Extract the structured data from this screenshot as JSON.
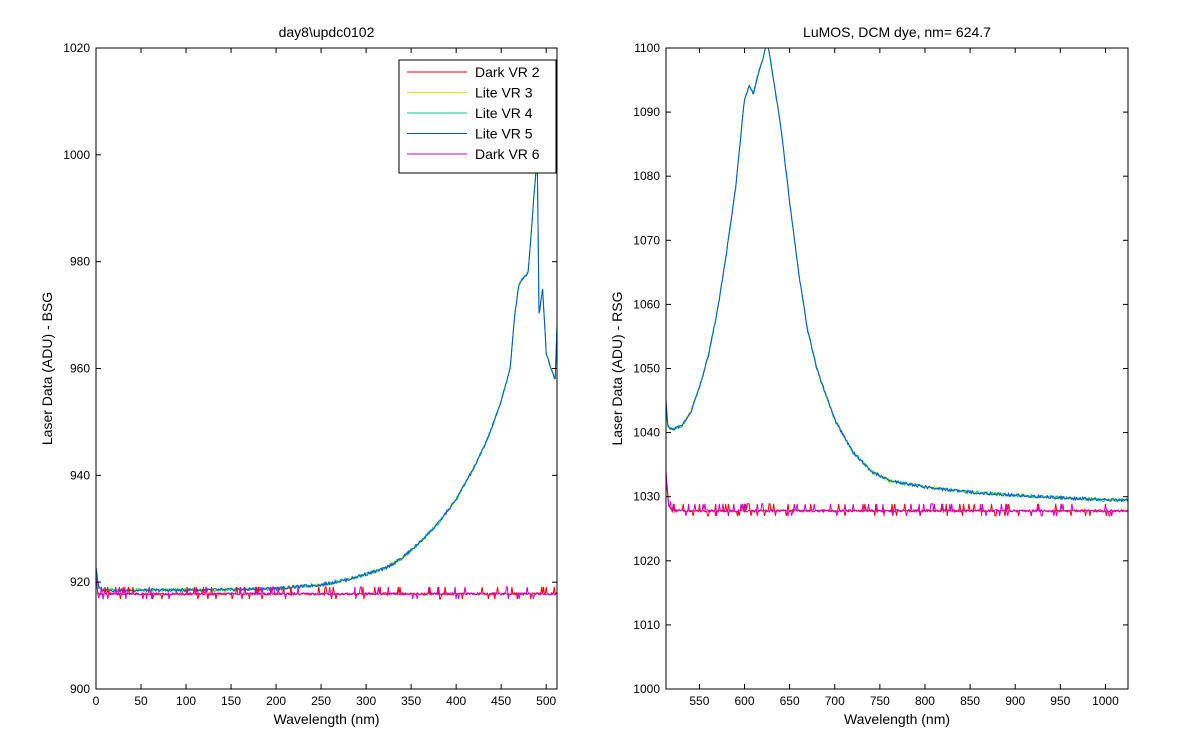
{
  "window": {
    "background": "#ffffff"
  },
  "chart_data": [
    {
      "type": "line",
      "title": "day8\\updc0102",
      "xlabel": "Wavelength (nm)",
      "ylabel": "Laser Data (ADU) - BSG",
      "xlim": [
        0,
        512
      ],
      "ylim": [
        900,
        1020
      ],
      "xticks": [
        0,
        50,
        100,
        150,
        200,
        250,
        300,
        350,
        400,
        450,
        500
      ],
      "yticks": [
        900,
        920,
        940,
        960,
        980,
        1000,
        1020
      ],
      "grid": false,
      "legend": {
        "placement": "top-right"
      },
      "series": [
        {
          "name": "Dark VR 2",
          "color": "#ff0000",
          "kind": "dark",
          "x": [
            0,
            2,
            4,
            512
          ],
          "y": [
            921,
            918,
            917.8,
            917.8
          ]
        },
        {
          "name": "Lite VR 3",
          "color": "#e6e600",
          "kind": "lite",
          "x": [
            0,
            3,
            6,
            50,
            100,
            150,
            200,
            250,
            280,
            300,
            320,
            340,
            360,
            380,
            400,
            420,
            430,
            440,
            450,
            460,
            465,
            470,
            480,
            490,
            492,
            496,
            500,
            505,
            510,
            512
          ],
          "y": [
            922,
            919,
            918.5,
            918.5,
            918.5,
            918.6,
            918.8,
            919.5,
            920.5,
            921.5,
            922.5,
            924.5,
            927.5,
            931,
            935.5,
            941.5,
            945,
            949,
            954,
            960,
            970,
            976,
            978,
            1000,
            970,
            975,
            963,
            960,
            958,
            968
          ]
        },
        {
          "name": "Lite VR 4",
          "color": "#00cc88",
          "kind": "lite",
          "x": [
            0,
            3,
            6,
            50,
            100,
            150,
            200,
            250,
            280,
            300,
            320,
            340,
            360,
            380,
            400,
            420,
            430,
            440,
            450,
            460,
            465,
            470,
            480,
            490,
            492,
            496,
            500,
            505,
            510,
            512
          ],
          "y": [
            922,
            919,
            918.5,
            918.5,
            918.5,
            918.6,
            918.8,
            919.5,
            920.5,
            921.5,
            922.5,
            924.5,
            927.5,
            931,
            935.5,
            941.5,
            945,
            949,
            954,
            960,
            970,
            976,
            978,
            1000,
            970,
            975,
            963,
            960,
            958,
            968
          ]
        },
        {
          "name": "Lite VR 5",
          "color": "#0055dd",
          "kind": "lite",
          "x": [
            0,
            3,
            6,
            50,
            100,
            150,
            200,
            250,
            280,
            300,
            320,
            340,
            360,
            380,
            400,
            420,
            430,
            440,
            450,
            460,
            465,
            470,
            480,
            490,
            492,
            496,
            500,
            505,
            510,
            512
          ],
          "y": [
            923,
            919,
            918.5,
            918.5,
            918.5,
            918.6,
            918.8,
            919.5,
            920.5,
            921.5,
            922.5,
            924.5,
            927.5,
            931,
            935.5,
            941.5,
            945,
            949,
            954,
            960,
            970,
            976,
            978,
            1000,
            970,
            975,
            963,
            960,
            958,
            968
          ]
        },
        {
          "name": "Dark VR 6",
          "color": "#cc00cc",
          "kind": "dark",
          "x": [
            0,
            2,
            4,
            512
          ],
          "y": [
            921,
            918,
            917.8,
            917.8
          ]
        }
      ]
    },
    {
      "type": "line",
      "title": "LuMOS, DCM dye, nm= 624.7",
      "xlabel": "Wavelength (nm)",
      "ylabel": "Laser Data (ADU) - RSG",
      "xlim": [
        513,
        1025
      ],
      "ylim": [
        1000,
        1100
      ],
      "xticks": [
        550,
        600,
        650,
        700,
        750,
        800,
        850,
        900,
        950,
        1000
      ],
      "yticks": [
        1000,
        1010,
        1020,
        1030,
        1040,
        1050,
        1060,
        1070,
        1080,
        1090,
        1100
      ],
      "grid": false,
      "legend": null,
      "series": [
        {
          "name": "Dark VR 2",
          "color": "#ff0000",
          "kind": "dark",
          "x": [
            513,
            516,
            520,
            1025
          ],
          "y": [
            1034,
            1028.5,
            1027.8,
            1027.8
          ]
        },
        {
          "name": "Lite VR 3",
          "color": "#e6e600",
          "kind": "lite",
          "x": [
            513,
            515,
            520,
            530,
            540,
            550,
            560,
            570,
            580,
            590,
            595,
            600,
            605,
            610,
            615,
            620,
            625,
            630,
            640,
            650,
            660,
            670,
            680,
            690,
            700,
            720,
            740,
            760,
            800,
            850,
            900,
            1000,
            1025
          ],
          "y": [
            1044,
            1041,
            1040.5,
            1041,
            1043,
            1047,
            1052,
            1059,
            1068,
            1078,
            1085,
            1092,
            1094,
            1093,
            1096,
            1098,
            1101,
            1097,
            1088,
            1076,
            1065,
            1056,
            1050,
            1046,
            1042,
            1037,
            1034,
            1032.5,
            1031.5,
            1030.7,
            1030.2,
            1029.5,
            1029.5
          ]
        },
        {
          "name": "Lite VR 4",
          "color": "#00cc88",
          "kind": "lite",
          "x": [
            513,
            515,
            520,
            530,
            540,
            550,
            560,
            570,
            580,
            590,
            595,
            600,
            605,
            610,
            615,
            620,
            625,
            630,
            640,
            650,
            660,
            670,
            680,
            690,
            700,
            720,
            740,
            760,
            800,
            850,
            900,
            1000,
            1025
          ],
          "y": [
            1044,
            1041,
            1040.5,
            1041,
            1043,
            1047,
            1052,
            1059,
            1068,
            1078,
            1085,
            1092,
            1094,
            1093,
            1096,
            1098,
            1101,
            1097,
            1088,
            1076,
            1065,
            1056,
            1050,
            1046,
            1042,
            1037,
            1034,
            1032.5,
            1031.5,
            1030.7,
            1030.2,
            1029.5,
            1029.5
          ]
        },
        {
          "name": "Lite VR 5",
          "color": "#0055dd",
          "kind": "lite",
          "x": [
            513,
            515,
            520,
            530,
            540,
            550,
            560,
            570,
            580,
            590,
            595,
            600,
            605,
            610,
            615,
            620,
            625,
            630,
            640,
            650,
            660,
            670,
            680,
            690,
            700,
            720,
            740,
            760,
            800,
            850,
            900,
            1000,
            1025
          ],
          "y": [
            1045,
            1041,
            1040.5,
            1041,
            1043,
            1047,
            1052,
            1059,
            1068,
            1078,
            1085,
            1092,
            1094,
            1093,
            1096,
            1098,
            1101,
            1097,
            1088,
            1076,
            1065,
            1056,
            1050,
            1046,
            1042,
            1037,
            1034,
            1032.5,
            1031.5,
            1030.7,
            1030.2,
            1029.5,
            1029.5
          ]
        },
        {
          "name": "Dark VR 6",
          "color": "#cc00cc",
          "kind": "dark",
          "x": [
            513,
            516,
            520,
            1025
          ],
          "y": [
            1034,
            1028.5,
            1027.8,
            1027.8
          ]
        }
      ]
    }
  ]
}
